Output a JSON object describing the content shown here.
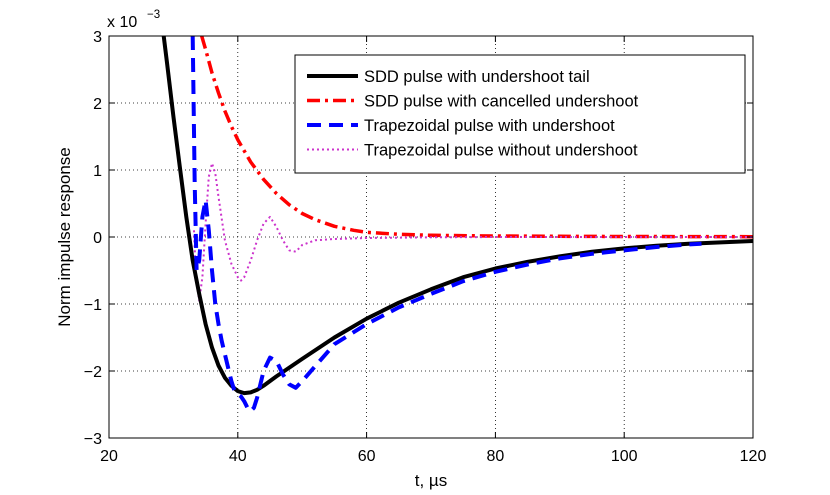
{
  "chart_data": {
    "type": "line",
    "title": "",
    "xlabel": "t, µs",
    "ylabel": "Norm impulse response",
    "y_exponent_label": "x 10",
    "y_exponent_power": "−3",
    "xlim": [
      20,
      120
    ],
    "ylim": [
      -3,
      3
    ],
    "x_ticks": [
      20,
      40,
      60,
      80,
      100,
      120
    ],
    "y_ticks": [
      -3,
      -2,
      -1,
      0,
      1,
      2,
      3
    ],
    "x_tick_labels": [
      "20",
      "40",
      "60",
      "80",
      "100",
      "120"
    ],
    "y_tick_labels": [
      "−3",
      "−2",
      "−1",
      "0",
      "1",
      "2",
      "3"
    ],
    "grid": true,
    "legend_position": "top-right",
    "series": [
      {
        "name": "SDD pulse with undershoot tail",
        "color": "#000000",
        "style": "solid",
        "x": [
          28.5,
          29,
          30,
          31,
          32,
          33,
          34,
          35,
          36,
          37,
          38,
          39,
          40,
          41,
          42,
          43,
          44,
          46,
          48,
          50,
          55,
          60,
          65,
          70,
          75,
          80,
          85,
          90,
          95,
          100,
          105,
          110,
          115,
          120
        ],
        "y": [
          3.0,
          2.6,
          1.8,
          1.05,
          0.3,
          -0.35,
          -0.85,
          -1.3,
          -1.65,
          -1.92,
          -2.1,
          -2.22,
          -2.3,
          -2.33,
          -2.32,
          -2.28,
          -2.22,
          -2.08,
          -1.95,
          -1.82,
          -1.5,
          -1.22,
          -0.98,
          -0.78,
          -0.6,
          -0.47,
          -0.37,
          -0.29,
          -0.22,
          -0.17,
          -0.13,
          -0.1,
          -0.08,
          -0.06
        ]
      },
      {
        "name": "SDD pulse with cancelled undershoot",
        "color": "#ff0000",
        "style": "dashdot",
        "x": [
          34.4,
          35,
          36,
          37,
          38,
          39,
          40,
          42,
          44,
          46,
          48,
          50,
          52,
          55,
          58,
          60,
          65,
          70,
          80,
          90,
          100,
          110,
          120
        ],
        "y": [
          3.0,
          2.8,
          2.45,
          2.15,
          1.88,
          1.65,
          1.45,
          1.12,
          0.86,
          0.65,
          0.48,
          0.35,
          0.26,
          0.16,
          0.1,
          0.07,
          0.04,
          0.025,
          0.015,
          0.01,
          0.008,
          0.006,
          0.005
        ]
      },
      {
        "name": "Trapezoidal pulse with undershoot",
        "color": "#0000ff",
        "style": "dashed",
        "x": [
          33.0,
          33.3,
          33.6,
          34,
          34.5,
          35,
          35.5,
          36,
          36.5,
          37,
          37.5,
          38,
          38.5,
          39,
          39.5,
          40,
          40.5,
          41,
          41.5,
          42,
          42.5,
          43,
          44,
          45,
          46,
          47,
          48,
          49,
          50,
          55,
          60,
          65,
          70,
          75,
          80,
          85,
          90,
          95,
          100,
          105,
          110,
          112
        ],
        "y": [
          3.0,
          0.8,
          -0.5,
          -0.35,
          0.3,
          0.55,
          0.1,
          -0.5,
          -1.0,
          -1.3,
          -1.55,
          -1.75,
          -1.95,
          -2.15,
          -2.3,
          -2.35,
          -2.38,
          -2.45,
          -2.55,
          -2.6,
          -2.55,
          -2.4,
          -2.0,
          -1.8,
          -1.85,
          -2.05,
          -2.2,
          -2.25,
          -2.15,
          -1.6,
          -1.3,
          -1.05,
          -0.85,
          -0.66,
          -0.52,
          -0.41,
          -0.32,
          -0.25,
          -0.2,
          -0.15,
          -0.11,
          -0.1
        ]
      },
      {
        "name": "Trapezoidal pulse without undershoot",
        "color": "#cc33cc",
        "style": "dotted",
        "x": [
          33.2,
          33.5,
          34,
          34.5,
          35,
          35.5,
          36,
          36.5,
          37,
          38,
          39,
          40,
          40.5,
          41,
          42,
          43,
          44,
          45,
          46,
          47,
          48,
          49,
          50,
          52,
          55,
          60,
          65,
          70,
          80,
          90,
          100,
          110,
          120
        ],
        "y": [
          0.1,
          -0.6,
          -0.95,
          -0.6,
          0.2,
          0.9,
          1.1,
          0.95,
          0.6,
          -0.05,
          -0.4,
          -0.6,
          -0.65,
          -0.6,
          -0.35,
          -0.05,
          0.2,
          0.3,
          0.15,
          -0.05,
          -0.2,
          -0.22,
          -0.12,
          -0.05,
          -0.03,
          -0.015,
          -0.01,
          -0.005,
          0.0,
          0.0,
          0.0,
          0.0,
          0.0
        ]
      }
    ]
  }
}
